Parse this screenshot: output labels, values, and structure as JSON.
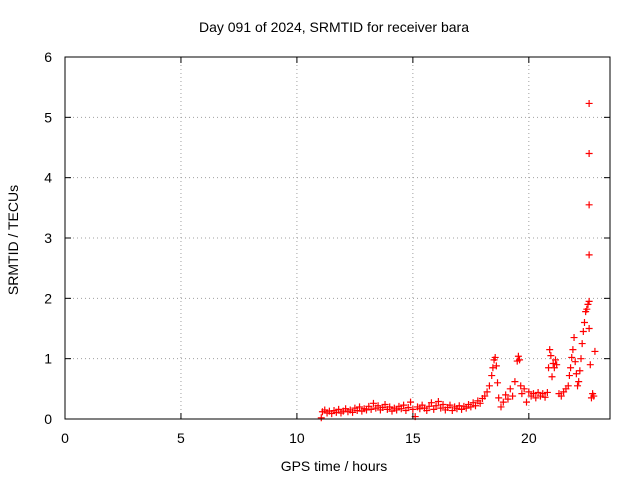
{
  "chart_data": {
    "type": "scatter",
    "title": "Day 091 of 2024, SRMTID for receiver bara",
    "xlabel": "GPS time / hours",
    "ylabel": "SRMTID / TECUs",
    "xlim": [
      0,
      23.5
    ],
    "ylim": [
      0,
      6
    ],
    "xticks": [
      0,
      5,
      10,
      15,
      20
    ],
    "yticks": [
      0,
      1,
      2,
      3,
      4,
      5,
      6
    ],
    "grid": true,
    "marker": "+",
    "series": [
      {
        "name": "SRMTID",
        "color": "#ff0000",
        "points": [
          [
            11.05,
            0.02
          ],
          [
            11.1,
            0.12
          ],
          [
            11.2,
            0.15
          ],
          [
            11.3,
            0.1
          ],
          [
            11.4,
            0.13
          ],
          [
            11.5,
            0.09
          ],
          [
            11.6,
            0.14
          ],
          [
            11.7,
            0.11
          ],
          [
            11.8,
            0.16
          ],
          [
            11.9,
            0.1
          ],
          [
            12.0,
            0.13
          ],
          [
            12.1,
            0.17
          ],
          [
            12.2,
            0.12
          ],
          [
            12.3,
            0.15
          ],
          [
            12.4,
            0.11
          ],
          [
            12.5,
            0.18
          ],
          [
            12.6,
            0.14
          ],
          [
            12.7,
            0.2
          ],
          [
            12.8,
            0.13
          ],
          [
            12.9,
            0.17
          ],
          [
            13.0,
            0.15
          ],
          [
            13.1,
            0.21
          ],
          [
            13.2,
            0.16
          ],
          [
            13.3,
            0.26
          ],
          [
            13.4,
            0.18
          ],
          [
            13.5,
            0.22
          ],
          [
            13.6,
            0.15
          ],
          [
            13.7,
            0.19
          ],
          [
            13.8,
            0.24
          ],
          [
            13.9,
            0.16
          ],
          [
            14.0,
            0.2
          ],
          [
            14.1,
            0.13
          ],
          [
            14.2,
            0.18
          ],
          [
            14.3,
            0.15
          ],
          [
            14.4,
            0.21
          ],
          [
            14.5,
            0.17
          ],
          [
            14.6,
            0.23
          ],
          [
            14.7,
            0.14
          ],
          [
            14.8,
            0.19
          ],
          [
            14.9,
            0.28
          ],
          [
            15.0,
            0.16
          ],
          [
            15.1,
            0.04
          ],
          [
            15.2,
            0.2
          ],
          [
            15.3,
            0.17
          ],
          [
            15.4,
            0.23
          ],
          [
            15.5,
            0.18
          ],
          [
            15.6,
            0.14
          ],
          [
            15.7,
            0.21
          ],
          [
            15.8,
            0.27
          ],
          [
            15.9,
            0.16
          ],
          [
            16.0,
            0.22
          ],
          [
            16.1,
            0.29
          ],
          [
            16.2,
            0.18
          ],
          [
            16.3,
            0.24
          ],
          [
            16.4,
            0.15
          ],
          [
            16.5,
            0.19
          ],
          [
            16.6,
            0.23
          ],
          [
            16.7,
            0.14
          ],
          [
            16.8,
            0.2
          ],
          [
            16.9,
            0.17
          ],
          [
            17.0,
            0.22
          ],
          [
            17.1,
            0.16
          ],
          [
            17.2,
            0.21
          ],
          [
            17.3,
            0.18
          ],
          [
            17.4,
            0.24
          ],
          [
            17.5,
            0.2
          ],
          [
            17.6,
            0.27
          ],
          [
            17.7,
            0.22
          ],
          [
            17.8,
            0.3
          ],
          [
            17.9,
            0.26
          ],
          [
            18.0,
            0.34
          ],
          [
            18.1,
            0.38
          ],
          [
            18.2,
            0.45
          ],
          [
            18.3,
            0.55
          ],
          [
            18.4,
            0.72
          ],
          [
            18.45,
            0.85
          ],
          [
            18.5,
            0.98
          ],
          [
            18.55,
            1.02
          ],
          [
            18.6,
            0.88
          ],
          [
            18.65,
            0.6
          ],
          [
            18.7,
            0.35
          ],
          [
            18.8,
            0.2
          ],
          [
            18.9,
            0.28
          ],
          [
            19.0,
            0.4
          ],
          [
            19.1,
            0.33
          ],
          [
            19.2,
            0.5
          ],
          [
            19.3,
            0.38
          ],
          [
            19.4,
            0.62
          ],
          [
            19.5,
            0.96
          ],
          [
            19.55,
            1.04
          ],
          [
            19.6,
            0.98
          ],
          [
            19.65,
            0.55
          ],
          [
            19.7,
            0.42
          ],
          [
            19.8,
            0.5
          ],
          [
            19.9,
            0.28
          ],
          [
            20.0,
            0.45
          ],
          [
            20.1,
            0.38
          ],
          [
            20.2,
            0.42
          ],
          [
            20.3,
            0.35
          ],
          [
            20.4,
            0.44
          ],
          [
            20.5,
            0.38
          ],
          [
            20.6,
            0.42
          ],
          [
            20.7,
            0.36
          ],
          [
            20.8,
            0.44
          ],
          [
            20.85,
            0.85
          ],
          [
            20.9,
            1.15
          ],
          [
            20.95,
            1.05
          ],
          [
            21.0,
            0.7
          ],
          [
            21.05,
            0.92
          ],
          [
            21.1,
            0.85
          ],
          [
            21.15,
            0.98
          ],
          [
            21.2,
            0.9
          ],
          [
            21.3,
            0.42
          ],
          [
            21.4,
            0.38
          ],
          [
            21.5,
            0.45
          ],
          [
            21.6,
            0.5
          ],
          [
            21.7,
            0.55
          ],
          [
            21.75,
            0.72
          ],
          [
            21.8,
            0.85
          ],
          [
            21.85,
            1.02
          ],
          [
            21.9,
            1.15
          ],
          [
            21.95,
            1.35
          ],
          [
            22.0,
            0.95
          ],
          [
            22.05,
            0.75
          ],
          [
            22.1,
            0.55
          ],
          [
            22.15,
            0.62
          ],
          [
            22.2,
            0.8
          ],
          [
            22.25,
            1.0
          ],
          [
            22.3,
            1.25
          ],
          [
            22.35,
            1.45
          ],
          [
            22.4,
            1.6
          ],
          [
            22.45,
            1.78
          ],
          [
            22.5,
            1.82
          ],
          [
            22.55,
            1.9
          ],
          [
            22.6,
            1.5
          ],
          [
            22.65,
            0.9
          ],
          [
            22.7,
            0.35
          ],
          [
            22.75,
            0.42
          ],
          [
            22.8,
            0.38
          ],
          [
            22.85,
            1.12
          ],
          [
            22.6,
            5.23
          ],
          [
            22.6,
            4.4
          ],
          [
            22.6,
            3.55
          ],
          [
            22.6,
            2.72
          ],
          [
            22.6,
            1.95
          ]
        ]
      }
    ]
  }
}
